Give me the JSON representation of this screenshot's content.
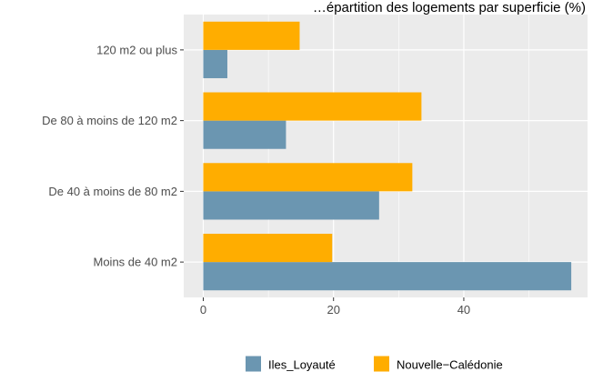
{
  "chart_data": {
    "type": "bar",
    "orientation": "horizontal",
    "title": "…épartition des logements par superficie (%)",
    "categories": [
      "Moins de 40 m2",
      "De 40 à moins de 80 m2",
      "De 80 à moins de 120 m2",
      "120 m2 ou plus"
    ],
    "series": [
      {
        "name": "Iles_Loyauté",
        "color": "#6b96b1",
        "values": [
          56.5,
          27.0,
          12.7,
          3.7
        ]
      },
      {
        "name": "Nouvelle−Calédonie",
        "color": "#ffad00",
        "values": [
          19.8,
          32.1,
          33.5,
          14.8
        ]
      }
    ],
    "xlim": [
      -3,
      59
    ],
    "xticks": [
      0,
      20,
      40
    ],
    "xtick_labels": [
      "0",
      "20",
      "40"
    ],
    "grid": true,
    "legend_position": "bottom",
    "panel_background": "#ebebeb"
  }
}
